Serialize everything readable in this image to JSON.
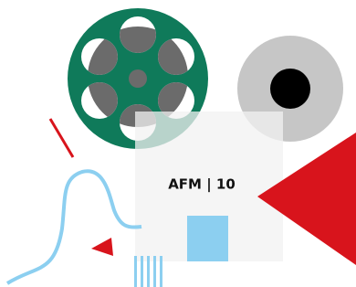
{
  "logo": {
    "text": "AFM | 10"
  }
}
